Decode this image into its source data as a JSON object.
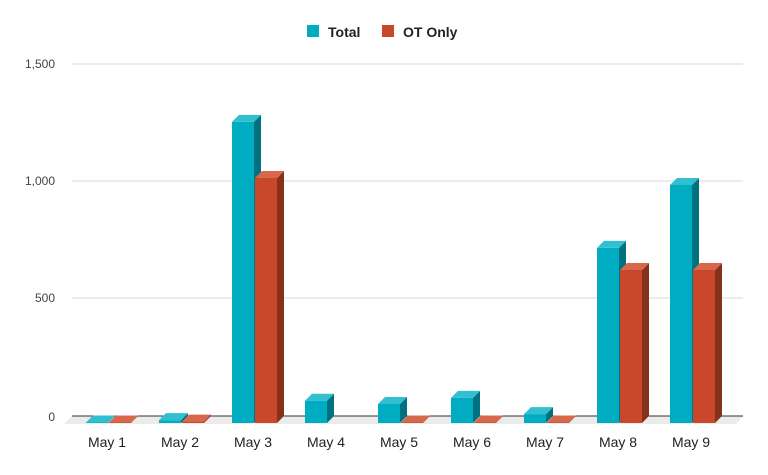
{
  "chart_data": {
    "type": "bar",
    "style": "3d-grouped-column",
    "title": "",
    "xlabel": "",
    "ylabel": "",
    "categories": [
      "May 1",
      "May 2",
      "May 3",
      "May 4",
      "May 5",
      "May 6",
      "May 7",
      "May 8",
      "May 9"
    ],
    "series": [
      {
        "name": "Total",
        "color": "#00acc1",
        "values": [
          2,
          12,
          1283,
          95,
          81,
          107,
          38,
          746,
          1014
        ]
      },
      {
        "name": "OT Only",
        "color": "#c9472a",
        "values": [
          2,
          6,
          1044,
          null,
          2,
          2,
          2,
          652,
          652
        ]
      }
    ],
    "ylim": [
      0,
      1500
    ],
    "yticks": [
      0,
      500,
      1000,
      1500
    ],
    "ytick_labels": [
      "0",
      "500",
      "1,000",
      "1,500"
    ],
    "grid": true,
    "legend_position": "top"
  },
  "legend": {
    "items": [
      {
        "label": "Total",
        "color": "#00acc1"
      },
      {
        "label": "OT Only",
        "color": "#c9472a"
      }
    ]
  },
  "axis": {
    "y_labels": [
      "1,500",
      "1,000",
      "500",
      "0"
    ],
    "x_labels": [
      "May 1",
      "May 2",
      "May 3",
      "May 4",
      "May 5",
      "May 6",
      "May 7",
      "May 8",
      "May 9"
    ]
  }
}
